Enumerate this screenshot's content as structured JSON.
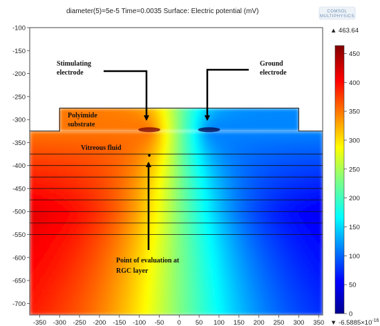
{
  "chart_data": {
    "type": "heatmap",
    "title": "diameter(5)=5e-5 Time=0.0035   Surface: Electric potential (mV)",
    "xlabel": "",
    "ylabel": "",
    "xlim": [
      -375,
      360
    ],
    "ylim": [
      -725,
      -100
    ],
    "x_ticks": [
      -350,
      -300,
      -250,
      -200,
      -150,
      -100,
      -50,
      0,
      50,
      100,
      150,
      200,
      250,
      300,
      350
    ],
    "y_ticks": [
      -100,
      -150,
      -200,
      -250,
      -300,
      -350,
      -400,
      -450,
      -500,
      -550,
      -600,
      -650,
      -700
    ],
    "colorbar": {
      "min": 0,
      "max": 463.64,
      "max_label": "▲ 463.64",
      "min_label": "▼ -6.5885×10",
      "min_exponent": "-16",
      "ticks": [
        0,
        50,
        100,
        150,
        200,
        250,
        300,
        350,
        400,
        450
      ]
    },
    "domain": {
      "substrate": {
        "x": [
          -300,
          300
        ],
        "y": [
          -325,
          -275
        ]
      },
      "tissue": {
        "x": [
          -375,
          360
        ],
        "y": [
          -725,
          -325
        ]
      }
    },
    "electrodes": [
      {
        "name": "Stimulating electrode",
        "x": -75,
        "y": -325,
        "value": 463.64
      },
      {
        "name": "Ground electrode",
        "x": 75,
        "y": -325,
        "value": 0
      }
    ],
    "layer_boundaries_y": [
      -375,
      -400,
      -425,
      -450,
      -475,
      -500,
      -525,
      -550
    ],
    "evaluation_point": {
      "x": -75,
      "y": -375
    },
    "annotations": [
      {
        "lines": [
          "Stimulating",
          "electrode"
        ]
      },
      {
        "lines": [
          "Ground",
          "electrode"
        ]
      },
      {
        "lines": [
          "Polyimide",
          "substrate"
        ]
      },
      {
        "lines": [
          "Vitreous fluid"
        ]
      },
      {
        "lines": [
          "Point of evaluation at",
          "RGC layer"
        ]
      }
    ],
    "logo_lines": [
      "COMSOL",
      "MULTIPHYSICS"
    ]
  }
}
